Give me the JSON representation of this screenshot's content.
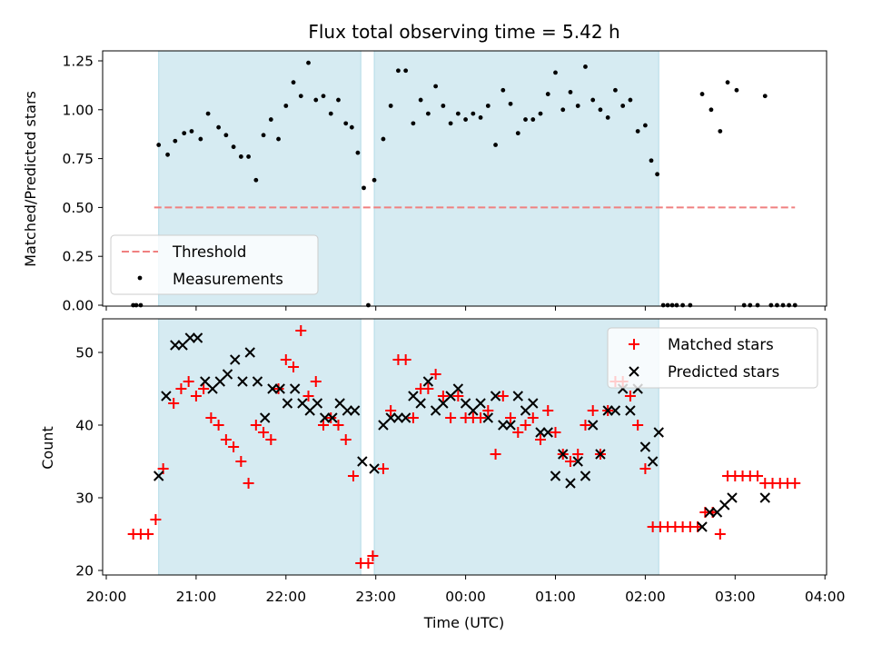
{
  "chart_data": [
    {
      "type": "scatter",
      "title": "Flux total observing time = 5.42 h",
      "xlabel": "",
      "ylabel": "Matched/Predicted stars",
      "ylim": [
        0,
        1.3
      ],
      "yticks": [
        "0.00",
        "0.25",
        "0.50",
        "0.75",
        "1.00",
        "1.25"
      ],
      "ytick_values": [
        0,
        0.25,
        0.5,
        0.75,
        1.0,
        1.25
      ],
      "legend_position": "lower-left",
      "threshold": {
        "name": "Threshold",
        "value": 0.5,
        "x_start": "20:32",
        "x_end": "03:40",
        "color": "#f08080"
      },
      "shaded_intervals": [
        [
          "20:35",
          "22:50"
        ],
        [
          "22:59",
          "02:09"
        ]
      ],
      "series": [
        {
          "name": "Measurements",
          "color": "#000000",
          "points": [
            [
              "20:18",
              0.0
            ],
            [
              "20:20",
              0.0
            ],
            [
              "20:23",
              0.0
            ],
            [
              "20:35",
              0.82
            ],
            [
              "20:41",
              0.77
            ],
            [
              "20:46",
              0.84
            ],
            [
              "20:52",
              0.88
            ],
            [
              "20:57",
              0.89
            ],
            [
              "21:03",
              0.85
            ],
            [
              "21:08",
              0.98
            ],
            [
              "21:15",
              0.91
            ],
            [
              "21:20",
              0.87
            ],
            [
              "21:25",
              0.81
            ],
            [
              "21:30",
              0.76
            ],
            [
              "21:35",
              0.76
            ],
            [
              "21:40",
              0.64
            ],
            [
              "21:45",
              0.87
            ],
            [
              "21:50",
              0.95
            ],
            [
              "21:55",
              0.85
            ],
            [
              "22:00",
              1.02
            ],
            [
              "22:05",
              1.14
            ],
            [
              "22:10",
              1.07
            ],
            [
              "22:15",
              1.24
            ],
            [
              "22:20",
              1.05
            ],
            [
              "22:25",
              1.07
            ],
            [
              "22:30",
              0.98
            ],
            [
              "22:35",
              1.05
            ],
            [
              "22:40",
              0.93
            ],
            [
              "22:44",
              0.91
            ],
            [
              "22:48",
              0.78
            ],
            [
              "22:52",
              0.6
            ],
            [
              "22:55",
              0.0
            ],
            [
              "22:59",
              0.64
            ],
            [
              "23:05",
              0.85
            ],
            [
              "23:10",
              1.02
            ],
            [
              "23:15",
              1.2
            ],
            [
              "23:20",
              1.2
            ],
            [
              "23:25",
              0.93
            ],
            [
              "23:30",
              1.05
            ],
            [
              "23:35",
              0.98
            ],
            [
              "23:40",
              1.12
            ],
            [
              "23:45",
              1.02
            ],
            [
              "23:50",
              0.93
            ],
            [
              "23:55",
              0.98
            ],
            [
              "00:00",
              0.95
            ],
            [
              "00:05",
              0.98
            ],
            [
              "00:10",
              0.96
            ],
            [
              "00:15",
              1.02
            ],
            [
              "00:20",
              0.82
            ],
            [
              "00:25",
              1.1
            ],
            [
              "00:30",
              1.03
            ],
            [
              "00:35",
              0.88
            ],
            [
              "00:40",
              0.95
            ],
            [
              "00:45",
              0.95
            ],
            [
              "00:50",
              0.98
            ],
            [
              "00:55",
              1.08
            ],
            [
              "01:00",
              1.19
            ],
            [
              "01:05",
              1.0
            ],
            [
              "01:10",
              1.09
            ],
            [
              "01:15",
              1.02
            ],
            [
              "01:20",
              1.22
            ],
            [
              "01:25",
              1.05
            ],
            [
              "01:30",
              1.0
            ],
            [
              "01:35",
              0.96
            ],
            [
              "01:40",
              1.1
            ],
            [
              "01:45",
              1.02
            ],
            [
              "01:50",
              1.05
            ],
            [
              "01:55",
              0.89
            ],
            [
              "02:00",
              0.92
            ],
            [
              "02:04",
              0.74
            ],
            [
              "02:08",
              0.67
            ],
            [
              "02:12",
              0.0
            ],
            [
              "02:15",
              0.0
            ],
            [
              "02:18",
              0.0
            ],
            [
              "02:21",
              0.0
            ],
            [
              "02:25",
              0.0
            ],
            [
              "02:30",
              0.0
            ],
            [
              "02:38",
              1.08
            ],
            [
              "02:44",
              1.0
            ],
            [
              "02:50",
              0.89
            ],
            [
              "02:55",
              1.14
            ],
            [
              "03:01",
              1.1
            ],
            [
              "03:06",
              0.0
            ],
            [
              "03:10",
              0.0
            ],
            [
              "03:15",
              0.0
            ],
            [
              "03:20",
              1.07
            ],
            [
              "03:24",
              0.0
            ],
            [
              "03:28",
              0.0
            ],
            [
              "03:32",
              0.0
            ],
            [
              "03:36",
              0.0
            ],
            [
              "03:40",
              0.0
            ]
          ]
        }
      ]
    },
    {
      "type": "scatter",
      "title": "",
      "xlabel": "Time (UTC)",
      "ylabel": "Count",
      "ylim": [
        19.5,
        55
      ],
      "yticks": [
        "20",
        "30",
        "40",
        "50"
      ],
      "ytick_values": [
        20,
        30,
        40,
        50
      ],
      "xticks": [
        "20:00",
        "21:00",
        "22:00",
        "23:00",
        "00:00",
        "01:00",
        "02:00",
        "03:00",
        "04:00"
      ],
      "legend_position": "top-right",
      "shaded_intervals": [
        [
          "20:35",
          "22:50"
        ],
        [
          "22:59",
          "02:09"
        ]
      ],
      "series": [
        {
          "name": "Matched stars",
          "color": "#ff0000",
          "points": [
            [
              "20:18",
              25
            ],
            [
              "20:23",
              25
            ],
            [
              "20:28",
              25
            ],
            [
              "20:33",
              27
            ],
            [
              "20:38",
              34
            ],
            [
              "20:45",
              43
            ],
            [
              "20:50",
              45
            ],
            [
              "20:55",
              46
            ],
            [
              "21:00",
              44
            ],
            [
              "21:05",
              45
            ],
            [
              "21:10",
              41
            ],
            [
              "21:15",
              40
            ],
            [
              "21:20",
              38
            ],
            [
              "21:25",
              37
            ],
            [
              "21:30",
              35
            ],
            [
              "21:35",
              32
            ],
            [
              "21:40",
              40
            ],
            [
              "21:45",
              39
            ],
            [
              "21:50",
              38
            ],
            [
              "21:55",
              45
            ],
            [
              "22:00",
              49
            ],
            [
              "22:05",
              48
            ],
            [
              "22:10",
              53
            ],
            [
              "22:15",
              44
            ],
            [
              "22:20",
              46
            ],
            [
              "22:25",
              40
            ],
            [
              "22:30",
              41
            ],
            [
              "22:35",
              40
            ],
            [
              "22:40",
              38
            ],
            [
              "22:45",
              33
            ],
            [
              "22:50",
              21
            ],
            [
              "22:55",
              21
            ],
            [
              "22:58",
              22
            ],
            [
              "23:05",
              34
            ],
            [
              "23:10",
              42
            ],
            [
              "23:15",
              49
            ],
            [
              "23:20",
              49
            ],
            [
              "23:25",
              41
            ],
            [
              "23:30",
              45
            ],
            [
              "23:35",
              45
            ],
            [
              "23:40",
              47
            ],
            [
              "23:45",
              44
            ],
            [
              "23:50",
              41
            ],
            [
              "23:55",
              44
            ],
            [
              "00:00",
              41
            ],
            [
              "00:05",
              41
            ],
            [
              "00:10",
              41
            ],
            [
              "00:15",
              42
            ],
            [
              "00:20",
              36
            ],
            [
              "00:25",
              44
            ],
            [
              "00:30",
              41
            ],
            [
              "00:35",
              39
            ],
            [
              "00:40",
              40
            ],
            [
              "00:45",
              41
            ],
            [
              "00:50",
              38
            ],
            [
              "00:55",
              42
            ],
            [
              "01:00",
              39
            ],
            [
              "01:05",
              36
            ],
            [
              "01:10",
              35
            ],
            [
              "01:15",
              36
            ],
            [
              "01:20",
              40
            ],
            [
              "01:25",
              42
            ],
            [
              "01:30",
              36
            ],
            [
              "01:35",
              42
            ],
            [
              "01:40",
              46
            ],
            [
              "01:45",
              46
            ],
            [
              "01:50",
              44
            ],
            [
              "01:55",
              40
            ],
            [
              "02:00",
              34
            ],
            [
              "02:05",
              26
            ],
            [
              "02:10",
              26
            ],
            [
              "02:15",
              26
            ],
            [
              "02:20",
              26
            ],
            [
              "02:25",
              26
            ],
            [
              "02:30",
              26
            ],
            [
              "02:35",
              26
            ],
            [
              "02:40",
              28
            ],
            [
              "02:45",
              28
            ],
            [
              "02:50",
              25
            ],
            [
              "02:55",
              33
            ],
            [
              "03:00",
              33
            ],
            [
              "03:05",
              33
            ],
            [
              "03:10",
              33
            ],
            [
              "03:15",
              33
            ],
            [
              "03:20",
              32
            ],
            [
              "03:25",
              32
            ],
            [
              "03:30",
              32
            ],
            [
              "03:35",
              32
            ],
            [
              "03:40",
              32
            ]
          ]
        },
        {
          "name": "Predicted stars",
          "color": "#000000",
          "points": [
            [
              "20:35",
              33
            ],
            [
              "20:40",
              44
            ],
            [
              "20:46",
              51
            ],
            [
              "20:51",
              51
            ],
            [
              "20:56",
              52
            ],
            [
              "21:01",
              52
            ],
            [
              "21:06",
              46
            ],
            [
              "21:11",
              45
            ],
            [
              "21:16",
              46
            ],
            [
              "21:21",
              47
            ],
            [
              "21:26",
              49
            ],
            [
              "21:31",
              46
            ],
            [
              "21:36",
              50
            ],
            [
              "21:41",
              46
            ],
            [
              "21:46",
              41
            ],
            [
              "21:51",
              45
            ],
            [
              "21:56",
              45
            ],
            [
              "22:01",
              43
            ],
            [
              "22:06",
              45
            ],
            [
              "22:11",
              43
            ],
            [
              "22:16",
              42
            ],
            [
              "22:21",
              43
            ],
            [
              "22:26",
              41
            ],
            [
              "22:31",
              41
            ],
            [
              "22:36",
              43
            ],
            [
              "22:41",
              42
            ],
            [
              "22:46",
              42
            ],
            [
              "22:51",
              35
            ],
            [
              "22:59",
              34
            ],
            [
              "23:05",
              40
            ],
            [
              "23:10",
              41
            ],
            [
              "23:15",
              41
            ],
            [
              "23:20",
              41
            ],
            [
              "23:25",
              44
            ],
            [
              "23:30",
              43
            ],
            [
              "23:35",
              46
            ],
            [
              "23:40",
              42
            ],
            [
              "23:45",
              43
            ],
            [
              "23:50",
              44
            ],
            [
              "23:55",
              45
            ],
            [
              "00:00",
              43
            ],
            [
              "00:05",
              42
            ],
            [
              "00:10",
              43
            ],
            [
              "00:15",
              41
            ],
            [
              "00:20",
              44
            ],
            [
              "00:25",
              40
            ],
            [
              "00:30",
              40
            ],
            [
              "00:35",
              44
            ],
            [
              "00:40",
              42
            ],
            [
              "00:45",
              43
            ],
            [
              "00:50",
              39
            ],
            [
              "00:55",
              39
            ],
            [
              "01:00",
              33
            ],
            [
              "01:05",
              36
            ],
            [
              "01:10",
              32
            ],
            [
              "01:15",
              35
            ],
            [
              "01:20",
              33
            ],
            [
              "01:25",
              40
            ],
            [
              "01:30",
              36
            ],
            [
              "01:35",
              42
            ],
            [
              "01:40",
              42
            ],
            [
              "01:45",
              45
            ],
            [
              "01:50",
              42
            ],
            [
              "01:55",
              45
            ],
            [
              "02:00",
              37
            ],
            [
              "02:05",
              35
            ],
            [
              "02:09",
              39
            ],
            [
              "02:38",
              26
            ],
            [
              "02:43",
              28
            ],
            [
              "02:48",
              28
            ],
            [
              "02:53",
              29
            ],
            [
              "02:58",
              30
            ],
            [
              "03:20",
              30
            ]
          ]
        }
      ]
    }
  ]
}
